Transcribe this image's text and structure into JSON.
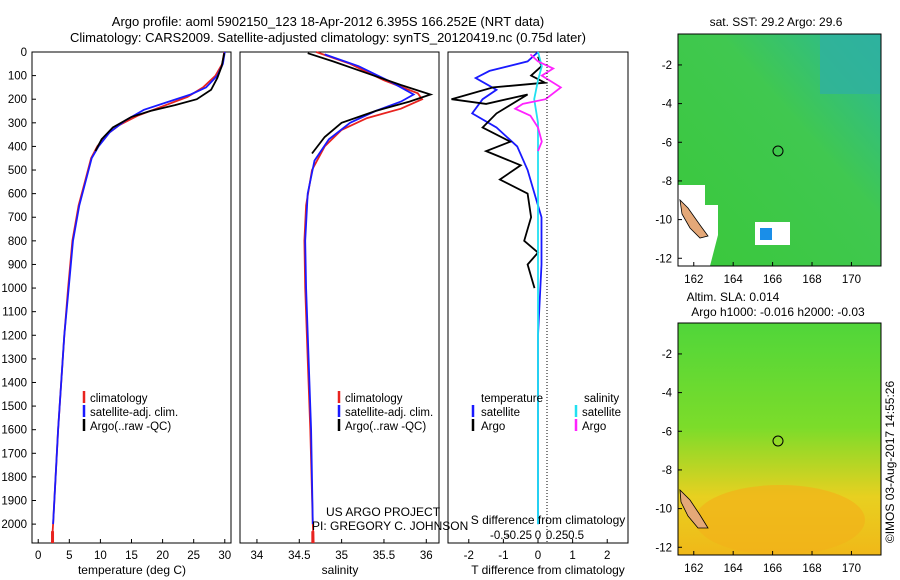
{
  "header": {
    "title_line1": "Argo profile: aoml 5902150_123 18-Apr-2012 6.395S 166.252E (NRT data)",
    "title_line2": "Climatology: CARS2009. Satellite-adjusted climatology: synTS_20120419.nc (0.75d later)"
  },
  "colors": {
    "climatology": "#e8231f",
    "satellite": "#1a1aff",
    "argo": "#000000",
    "sal_satellite": "#22e0f0",
    "sal_argo": "#ff22ff"
  },
  "chart_data": [
    {
      "type": "line",
      "name": "temperature-profile",
      "xlabel": "temperature (deg C)",
      "ylabel": "",
      "xlim": [
        -1,
        31
      ],
      "ylim": [
        2080,
        0
      ],
      "xticks": [
        0,
        5,
        10,
        15,
        20,
        25,
        30
      ],
      "yticks": [
        0,
        100,
        200,
        300,
        400,
        500,
        600,
        700,
        800,
        900,
        1000,
        1100,
        1200,
        1300,
        1400,
        1500,
        1600,
        1700,
        1800,
        1900,
        2000
      ],
      "legend": [
        "climatology",
        "satellite-adj. clim.",
        "Argo(..raw -QC)"
      ],
      "series": [
        {
          "name": "climatology",
          "color": "#e8231f",
          "points": [
            [
              29.9,
              0
            ],
            [
              29.6,
              50
            ],
            [
              28.5,
              100
            ],
            [
              26.5,
              150
            ],
            [
              24,
              190
            ],
            [
              20,
              230
            ],
            [
              16,
              270
            ],
            [
              13,
              310
            ],
            [
              11,
              350
            ],
            [
              9.5,
              400
            ],
            [
              8.5,
              450
            ],
            [
              7.5,
              550
            ],
            [
              6.5,
              650
            ],
            [
              5.5,
              800
            ],
            [
              4.8,
              1000
            ],
            [
              4.2,
              1200
            ],
            [
              3.7,
              1400
            ],
            [
              3.2,
              1600
            ],
            [
              2.8,
              1800
            ],
            [
              2.4,
              2000
            ],
            [
              2.2,
              2080
            ]
          ]
        },
        {
          "name": "satellite-adj. clim.",
          "color": "#1a1aff",
          "points": [
            [
              30.0,
              0
            ],
            [
              29.7,
              50
            ],
            [
              28.8,
              100
            ],
            [
              27,
              150
            ],
            [
              24.5,
              180
            ],
            [
              21,
              210
            ],
            [
              17,
              245
            ],
            [
              14,
              290
            ],
            [
              11.5,
              340
            ],
            [
              9.7,
              400
            ],
            [
              8.6,
              450
            ],
            [
              7.6,
              550
            ],
            [
              6.6,
              650
            ],
            [
              5.6,
              800
            ],
            [
              4.9,
              1000
            ],
            [
              4.2,
              1200
            ],
            [
              3.7,
              1400
            ],
            [
              3.2,
              1600
            ],
            [
              2.8,
              1800
            ],
            [
              2.4,
              2000
            ]
          ]
        },
        {
          "name": "Argo(..raw -QC)",
          "color": "#000000",
          "points": [
            [
              29.9,
              5
            ],
            [
              29.5,
              60
            ],
            [
              28.8,
              110
            ],
            [
              27.8,
              160
            ],
            [
              25.5,
              200
            ],
            [
              22,
              225
            ],
            [
              18,
              250
            ],
            [
              15,
              275
            ],
            [
              12,
              320
            ],
            [
              10.2,
              370
            ],
            [
              9.2,
              420
            ]
          ]
        }
      ]
    },
    {
      "type": "line",
      "name": "salinity-profile",
      "xlabel": "salinity",
      "xlim": [
        33.8,
        36.15
      ],
      "ylim": [
        2080,
        0
      ],
      "xticks": [
        34,
        34.5,
        35,
        35.5,
        36
      ],
      "legend": [
        "climatology",
        "satellite-adj. clim.",
        "Argo(..raw -QC)"
      ],
      "annotation_line1": "US ARGO PROJECT",
      "annotation_line2": "PI: GREGORY C. JOHNSON",
      "series": [
        {
          "name": "climatology",
          "color": "#e8231f",
          "points": [
            [
              34.7,
              0
            ],
            [
              35.1,
              50
            ],
            [
              35.5,
              120
            ],
            [
              35.9,
              175
            ],
            [
              35.95,
              200
            ],
            [
              35.7,
              240
            ],
            [
              35.3,
              280
            ],
            [
              35.0,
              330
            ],
            [
              34.8,
              400
            ],
            [
              34.65,
              500
            ],
            [
              34.58,
              650
            ],
            [
              34.56,
              800
            ],
            [
              34.57,
              1000
            ],
            [
              34.6,
              1300
            ],
            [
              34.63,
              1600
            ],
            [
              34.66,
              2000
            ],
            [
              34.67,
              2080
            ]
          ]
        },
        {
          "name": "satellite-adj. clim.",
          "color": "#1a1aff",
          "points": [
            [
              34.8,
              10
            ],
            [
              35.2,
              60
            ],
            [
              35.6,
              130
            ],
            [
              35.85,
              180
            ],
            [
              35.7,
              210
            ],
            [
              35.4,
              250
            ],
            [
              35.1,
              300
            ],
            [
              34.85,
              370
            ],
            [
              34.68,
              460
            ],
            [
              34.6,
              600
            ],
            [
              34.57,
              800
            ],
            [
              34.58,
              1000
            ],
            [
              34.61,
              1300
            ],
            [
              34.64,
              1600
            ],
            [
              34.66,
              2000
            ]
          ]
        },
        {
          "name": "Argo(..raw -QC)",
          "color": "#000000",
          "points": [
            [
              34.6,
              5
            ],
            [
              34.9,
              40
            ],
            [
              35.3,
              90
            ],
            [
              35.7,
              140
            ],
            [
              36.05,
              180
            ],
            [
              35.8,
              210
            ],
            [
              35.4,
              250
            ],
            [
              35.0,
              300
            ],
            [
              34.8,
              360
            ],
            [
              34.65,
              430
            ]
          ]
        }
      ]
    },
    {
      "type": "line",
      "name": "difference-profile",
      "xlabel": "T difference from climatology",
      "xlabel_top": "S difference from climatology",
      "xlim": [
        -2.6,
        2.6
      ],
      "ylim": [
        2080,
        0
      ],
      "xticks": [
        -2,
        -1,
        0,
        1,
        2
      ],
      "sticks": [
        -0.5,
        -0.25,
        0,
        0.25,
        0.5
      ],
      "legend_temperature": "temperature",
      "legend_salinity": "salinity",
      "legend_satellite": "satellite",
      "legend_argo": "Argo",
      "series": [
        {
          "name": "T satellite",
          "color": "#1a1aff",
          "points": [
            [
              0,
              0
            ],
            [
              -0.3,
              40
            ],
            [
              -1.4,
              80
            ],
            [
              -1.8,
              110
            ],
            [
              -1.2,
              160
            ],
            [
              -1.6,
              200
            ],
            [
              -1.9,
              260
            ],
            [
              -1.2,
              320
            ],
            [
              -0.6,
              400
            ],
            [
              -0.3,
              500
            ],
            [
              -0.1,
              600
            ],
            [
              0.1,
              700
            ],
            [
              0.1,
              900
            ],
            [
              0,
              1200
            ],
            [
              0,
              1600
            ],
            [
              0,
              2000
            ]
          ]
        },
        {
          "name": "T Argo",
          "color": "#000000",
          "points": [
            [
              0,
              20
            ],
            [
              0.1,
              60
            ],
            [
              -0.2,
              100
            ],
            [
              0.2,
              130
            ],
            [
              -1.3,
              150
            ],
            [
              -2.5,
              200
            ],
            [
              -1.5,
              220
            ],
            [
              -0.3,
              180
            ],
            [
              -1.2,
              260
            ],
            [
              -1.6,
              320
            ],
            [
              -0.8,
              380
            ],
            [
              -1.5,
              420
            ],
            [
              -0.5,
              480
            ],
            [
              -1.1,
              540
            ],
            [
              -0.3,
              600
            ],
            [
              -0.2,
              700
            ],
            [
              -0.4,
              800
            ],
            [
              0.0,
              850
            ],
            [
              -0.3,
              900
            ],
            [
              -0.1,
              1000
            ]
          ]
        },
        {
          "name": "S satellite",
          "color": "#22e0f0",
          "points": [
            [
              0.0,
              0
            ],
            [
              0.05,
              60
            ],
            [
              0.0,
              120
            ],
            [
              -0.05,
              200
            ],
            [
              0.0,
              300
            ],
            [
              0.0,
              500
            ],
            [
              0.0,
              800
            ],
            [
              0.0,
              1100
            ],
            [
              0.0,
              1500
            ],
            [
              0.0,
              2000
            ]
          ]
        },
        {
          "name": "S Argo",
          "color": "#ff22ff",
          "points": [
            [
              -0.1,
              10
            ],
            [
              0.0,
              40
            ],
            [
              0.2,
              70
            ],
            [
              0.05,
              100
            ],
            [
              0.3,
              150
            ],
            [
              0.1,
              200
            ],
            [
              -0.2,
              220
            ],
            [
              -0.3,
              240
            ],
            [
              -0.1,
              270
            ],
            [
              0.0,
              320
            ],
            [
              0.05,
              380
            ],
            [
              0.0,
              420
            ]
          ]
        }
      ]
    },
    {
      "type": "heatmap",
      "name": "sst-map",
      "title": "sat. SST: 29.2 Argo: 29.6",
      "xticks": [
        162,
        164,
        166,
        168,
        170
      ],
      "yticks": [
        -2,
        -4,
        -6,
        -8,
        -10,
        -12
      ],
      "xlim": [
        161.2,
        171.5
      ],
      "ylim": [
        -12.4,
        -0.4
      ],
      "argo_position": [
        166.252,
        -6.395
      ]
    },
    {
      "type": "heatmap",
      "name": "sla-map",
      "title_line1": "Altim. SLA: 0.014",
      "title_line2": "Argo h1000: -0.016 h2000: -0.03",
      "xticks": [
        162,
        164,
        166,
        168,
        170
      ],
      "yticks": [
        -2,
        -4,
        -6,
        -8,
        -10,
        -12
      ],
      "xlim": [
        161.2,
        171.5
      ],
      "ylim": [
        -12.4,
        -0.4
      ],
      "argo_position": [
        166.252,
        -6.395
      ]
    }
  ],
  "credit": "©IMOS 03-Aug-2017 14:55:26"
}
